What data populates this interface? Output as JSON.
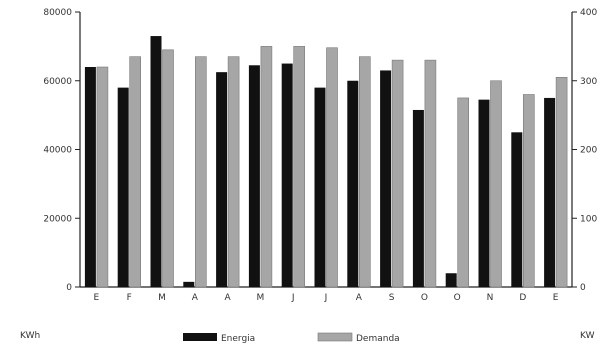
{
  "chart_data": {
    "type": "bar",
    "categories": [
      "E",
      "F",
      "M",
      "A",
      "A",
      "M",
      "J",
      "J",
      "A",
      "S",
      "O",
      "O",
      "N",
      "D",
      "E"
    ],
    "series": [
      {
        "name": "Energia",
        "axis": "left",
        "color": "#111111",
        "values": [
          64000,
          58000,
          73000,
          1500,
          62500,
          64500,
          65000,
          58000,
          60000,
          63000,
          51500,
          4000,
          54500,
          45000,
          55000
        ]
      },
      {
        "name": "Demanda",
        "axis": "right",
        "color": "#a6a6a6",
        "values": [
          320,
          335,
          345,
          335,
          335,
          350,
          350,
          348,
          335,
          330,
          330,
          275,
          300,
          280,
          305
        ]
      }
    ],
    "y_left": {
      "range": [
        0,
        80000
      ],
      "ticks": [
        0,
        20000,
        40000,
        60000,
        80000
      ],
      "tick_labels": [
        "0",
        "20000",
        "40000",
        "60000",
        "80000"
      ],
      "label": "KWh"
    },
    "y_right": {
      "range": [
        0,
        400
      ],
      "ticks": [
        0,
        100,
        200,
        300,
        400
      ],
      "tick_labels": [
        "0",
        "100",
        "200",
        "300",
        "400"
      ],
      "label": "KW"
    },
    "xlabel": "",
    "grid": false,
    "legend_position": "bottom-center"
  }
}
